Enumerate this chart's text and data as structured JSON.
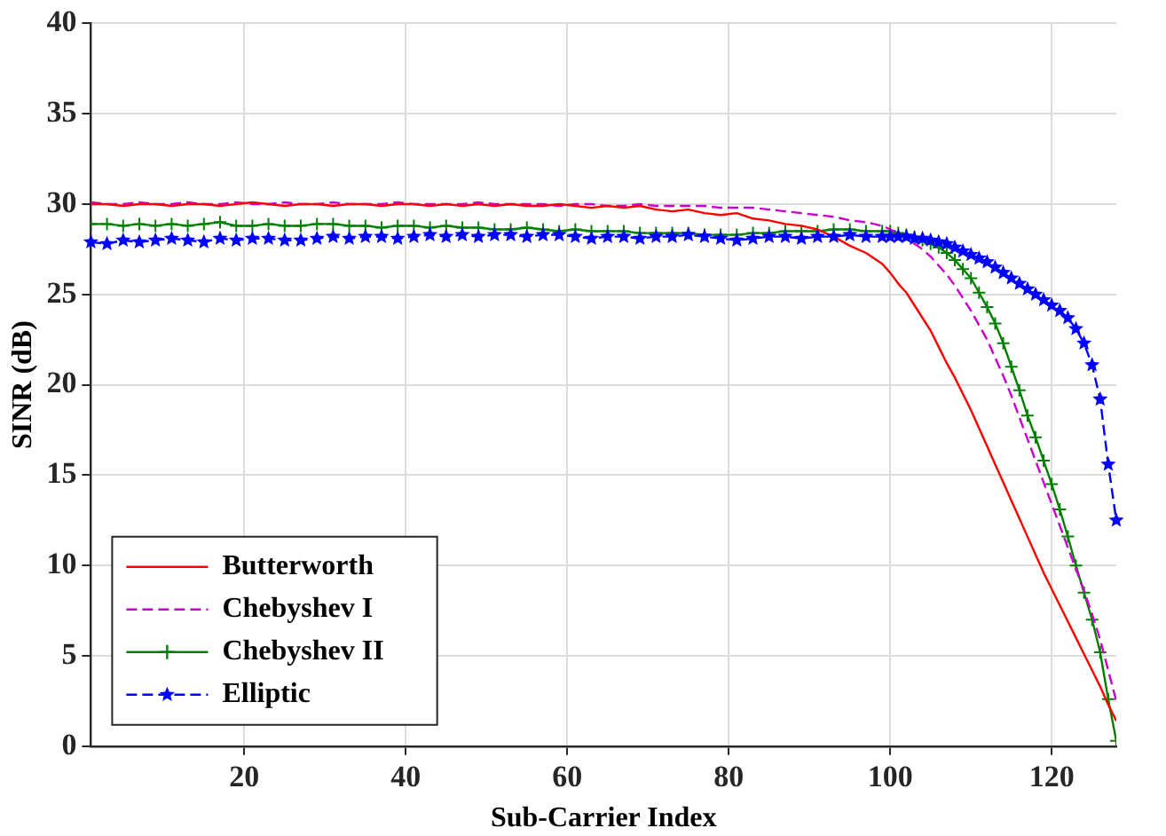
{
  "chart_data": {
    "type": "line",
    "xlabel": "Sub-Carrier Index",
    "ylabel": "SINR (dB)",
    "x": [
      1,
      3,
      5,
      7,
      9,
      11,
      13,
      15,
      17,
      19,
      21,
      23,
      25,
      27,
      29,
      31,
      33,
      35,
      37,
      39,
      41,
      43,
      45,
      47,
      49,
      51,
      53,
      55,
      57,
      59,
      61,
      63,
      65,
      67,
      69,
      71,
      73,
      75,
      77,
      79,
      81,
      83,
      85,
      87,
      89,
      91,
      93,
      95,
      97,
      99,
      100,
      101,
      102,
      103,
      104,
      105,
      106,
      107,
      108,
      109,
      110,
      111,
      112,
      113,
      114,
      115,
      116,
      117,
      118,
      119,
      120,
      121,
      122,
      123,
      124,
      125,
      126,
      127,
      128
    ],
    "series": [
      {
        "name": "Butterworth",
        "color": "#ff0000",
        "marker": "none",
        "line_style": "solid",
        "values": [
          30.0,
          30.0,
          29.9,
          30.0,
          30.0,
          29.9,
          30.0,
          30.0,
          29.9,
          30.0,
          30.1,
          30.0,
          29.9,
          30.0,
          30.0,
          29.9,
          30.0,
          30.0,
          29.9,
          30.0,
          30.0,
          29.9,
          30.0,
          29.9,
          30.0,
          29.9,
          30.0,
          29.9,
          29.9,
          30.0,
          29.9,
          29.8,
          29.9,
          29.8,
          29.9,
          29.7,
          29.6,
          29.7,
          29.5,
          29.4,
          29.5,
          29.2,
          29.1,
          28.9,
          28.8,
          28.6,
          28.2,
          27.7,
          27.3,
          26.7,
          26.2,
          25.6,
          25.1,
          24.4,
          23.7,
          23.0,
          22.1,
          21.2,
          20.4,
          19.5,
          18.6,
          17.6,
          16.6,
          15.6,
          14.6,
          13.6,
          12.6,
          11.6,
          10.6,
          9.6,
          8.7,
          7.8,
          6.9,
          6.0,
          5.1,
          4.2,
          3.3,
          2.3,
          1.4
        ]
      },
      {
        "name": "Chebyshev I",
        "color": "#cc00cc",
        "marker": "none",
        "line_style": "dashed",
        "values": [
          30.1,
          30.0,
          30.0,
          30.1,
          30.0,
          30.0,
          30.1,
          30.0,
          30.0,
          30.1,
          30.0,
          30.0,
          30.1,
          30.0,
          30.0,
          30.1,
          30.0,
          30.0,
          30.0,
          30.1,
          30.0,
          30.0,
          30.0,
          30.0,
          30.1,
          30.0,
          30.0,
          30.0,
          30.0,
          29.9,
          30.0,
          30.0,
          29.9,
          29.9,
          30.0,
          29.9,
          29.9,
          29.9,
          29.9,
          29.8,
          29.8,
          29.8,
          29.7,
          29.6,
          29.5,
          29.4,
          29.3,
          29.1,
          29.0,
          28.8,
          28.6,
          28.4,
          28.1,
          27.8,
          27.5,
          27.1,
          26.6,
          26.1,
          25.5,
          24.8,
          24.1,
          23.3,
          22.5,
          21.5,
          20.5,
          19.4,
          18.2,
          17.0,
          15.8,
          14.6,
          13.4,
          12.2,
          11.0,
          9.8,
          8.6,
          7.3,
          5.9,
          4.2,
          2.5
        ]
      },
      {
        "name": "Chebyshev II",
        "color": "#008000",
        "marker": "cross",
        "line_style": "solid",
        "values": [
          28.9,
          28.9,
          28.8,
          28.9,
          28.8,
          28.9,
          28.8,
          28.9,
          29.0,
          28.8,
          28.8,
          28.9,
          28.8,
          28.8,
          28.9,
          28.9,
          28.8,
          28.8,
          28.7,
          28.8,
          28.8,
          28.7,
          28.8,
          28.7,
          28.7,
          28.6,
          28.6,
          28.7,
          28.6,
          28.5,
          28.6,
          28.5,
          28.5,
          28.5,
          28.4,
          28.4,
          28.4,
          28.4,
          28.3,
          28.3,
          28.3,
          28.4,
          28.4,
          28.5,
          28.5,
          28.5,
          28.6,
          28.6,
          28.5,
          28.5,
          28.5,
          28.4,
          28.3,
          28.2,
          28.0,
          27.8,
          27.6,
          27.3,
          26.9,
          26.4,
          25.9,
          25.1,
          24.3,
          23.4,
          22.3,
          21.0,
          19.7,
          18.3,
          17.1,
          15.8,
          14.5,
          13.1,
          11.6,
          10.0,
          8.5,
          7.0,
          5.2,
          2.6,
          0.3
        ]
      },
      {
        "name": "Elliptic",
        "color": "#0000ff",
        "marker": "star",
        "line_style": "dashed",
        "values": [
          27.9,
          27.8,
          28.0,
          27.9,
          28.0,
          28.1,
          28.0,
          27.9,
          28.1,
          28.0,
          28.1,
          28.1,
          28.0,
          28.0,
          28.1,
          28.2,
          28.1,
          28.2,
          28.2,
          28.1,
          28.2,
          28.3,
          28.2,
          28.3,
          28.2,
          28.3,
          28.3,
          28.2,
          28.3,
          28.3,
          28.2,
          28.1,
          28.2,
          28.2,
          28.1,
          28.2,
          28.2,
          28.3,
          28.2,
          28.1,
          28.0,
          28.1,
          28.2,
          28.2,
          28.1,
          28.2,
          28.2,
          28.3,
          28.2,
          28.2,
          28.2,
          28.2,
          28.2,
          28.1,
          28.1,
          28.0,
          27.9,
          27.8,
          27.6,
          27.4,
          27.2,
          27.0,
          26.8,
          26.5,
          26.2,
          25.9,
          25.6,
          25.3,
          25.0,
          24.7,
          24.4,
          24.1,
          23.7,
          23.1,
          22.3,
          21.1,
          19.2,
          15.6,
          12.5
        ]
      }
    ],
    "xlim": [
      1,
      128
    ],
    "xticks": [
      20,
      40,
      60,
      80,
      100,
      120
    ],
    "ylim": [
      0,
      40
    ],
    "yticks": [
      0,
      5,
      10,
      15,
      20,
      25,
      30,
      35,
      40
    ],
    "grid": true,
    "legend": "bottom left"
  }
}
